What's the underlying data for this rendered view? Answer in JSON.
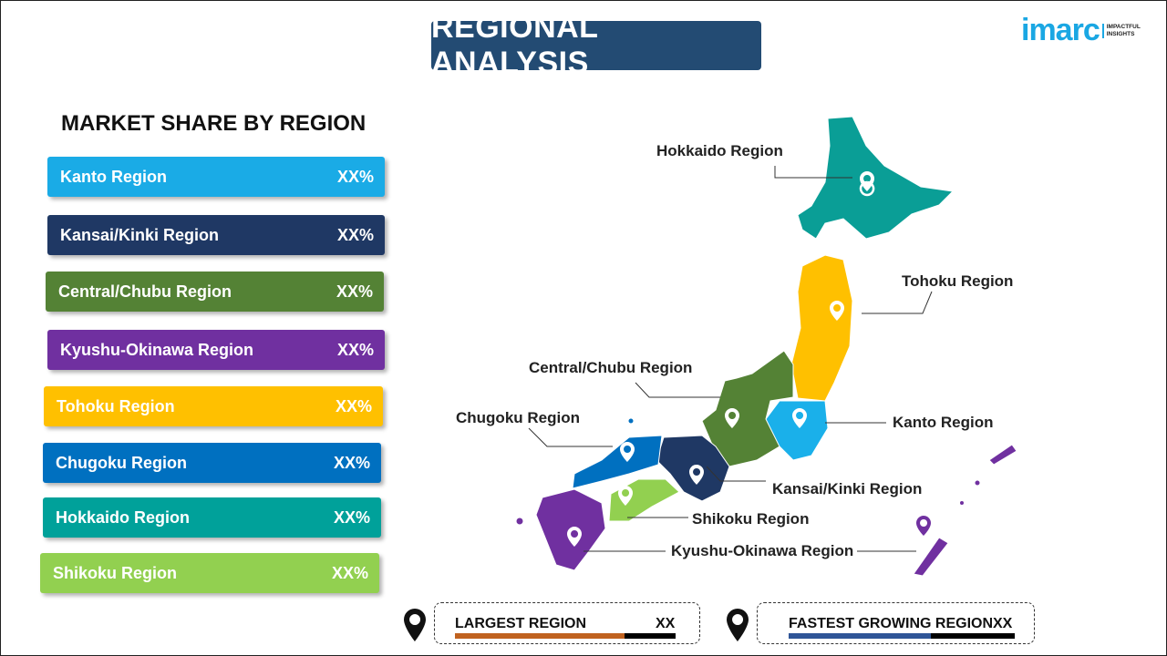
{
  "header": {
    "title": "REGIONAL ANALYSIS",
    "logo": {
      "word": "imarc",
      "tagline_1": "IMPACTFUL",
      "tagline_2": "INSIGHTS"
    }
  },
  "market_share": {
    "heading": "MARKET SHARE BY REGION",
    "items": [
      {
        "label": "Kanto Region",
        "value": "XX%",
        "color": "#1aabe6"
      },
      {
        "label": "Kansai/Kinki Region",
        "value": "XX%",
        "color": "#1f3864"
      },
      {
        "label": "Central/Chubu Region",
        "value": "XX%",
        "color": "#548235"
      },
      {
        "label": "Kyushu-Okinawa Region",
        "value": "XX%",
        "color": "#7030a0"
      },
      {
        "label": "Tohoku Region",
        "value": "XX%",
        "color": "#ffc000"
      },
      {
        "label": "Chugoku Region",
        "value": "XX%",
        "color": "#0070c0"
      },
      {
        "label": "Hokkaido Region",
        "value": "XX%",
        "color": "#00a19a"
      },
      {
        "label": "Shikoku Region",
        "value": "XX%",
        "color": "#92d050"
      }
    ]
  },
  "map_labels": {
    "hokkaido": "Hokkaido Region",
    "tohoku": "Tohoku Region",
    "central": "Central/Chubu Region",
    "chugoku": "Chugoku Region",
    "kanto": "Kanto Region",
    "kansai": "Kansai/Kinki Region",
    "shikoku": "Shikoku Region",
    "kyushu": "Kyushu-Okinawa Region"
  },
  "summary": {
    "largest": {
      "label": "LARGEST REGION",
      "value": "XX",
      "bar_color": "#c0621f",
      "fill_percent": 77
    },
    "fastest": {
      "label": "FASTEST GROWING REGION",
      "value": "XX",
      "bar_color": "#2f5597",
      "fill_percent": 63
    }
  }
}
